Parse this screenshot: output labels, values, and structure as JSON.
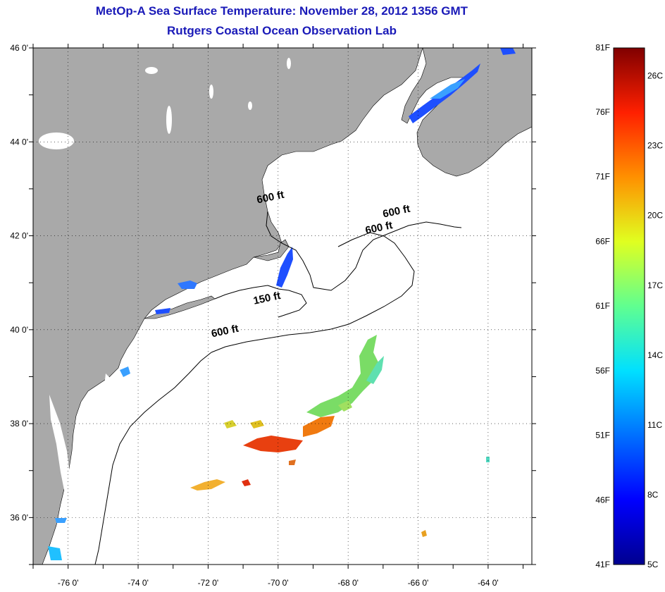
{
  "header": {
    "title": "MetOp-A Sea Surface Temperature:  November 28, 2012 1356 GMT",
    "subtitle": "Rutgers Coastal Ocean Observation Lab"
  },
  "map": {
    "lon_range": [
      -77,
      -62.75
    ],
    "lat_range": [
      35,
      46
    ],
    "grid": "dotted",
    "land_color": "#a9a9a9",
    "ocean_color": "#ffffff",
    "lon_ticks": [
      {
        "value": -76,
        "label": "-76 0'"
      },
      {
        "value": -74,
        "label": "-74 0'"
      },
      {
        "value": -72,
        "label": "-72 0'"
      },
      {
        "value": -70,
        "label": "-70 0'"
      },
      {
        "value": -68,
        "label": "-68 0'"
      },
      {
        "value": -66,
        "label": "-66 0'"
      },
      {
        "value": -64,
        "label": "-64 0'"
      }
    ],
    "lat_ticks": [
      {
        "value": 46,
        "label": "46 0'"
      },
      {
        "value": 44,
        "label": "44 0'"
      },
      {
        "value": 42,
        "label": "42 0'"
      },
      {
        "value": 40,
        "label": "40 0'"
      },
      {
        "value": 38,
        "label": "38 0'"
      },
      {
        "value": 36,
        "label": "36 0'"
      }
    ],
    "contour_labels": [
      {
        "text": "600 ft",
        "lon": -70.2,
        "lat": 42.75
      },
      {
        "text": "600 ft",
        "lon": -66.6,
        "lat": 42.45
      },
      {
        "text": "600 ft",
        "lon": -67.1,
        "lat": 42.1
      },
      {
        "text": "150 ft",
        "lon": -70.3,
        "lat": 40.6
      },
      {
        "text": "600 ft",
        "lon": -71.5,
        "lat": 39.9
      }
    ]
  },
  "colorbar": {
    "fahrenheit": [
      "81F",
      "76F",
      "71F",
      "66F",
      "61F",
      "56F",
      "51F",
      "46F",
      "41F"
    ],
    "celsius": [
      "26C",
      "23C",
      "20C",
      "17C",
      "14C",
      "11C",
      "8C",
      "5C"
    ],
    "range_c": [
      5,
      27.2
    ],
    "colors": [
      "#00008f",
      "#0000ff",
      "#0080ff",
      "#00ffff",
      "#80ff80",
      "#ffff00",
      "#ff8000",
      "#ff0000",
      "#800000"
    ]
  }
}
